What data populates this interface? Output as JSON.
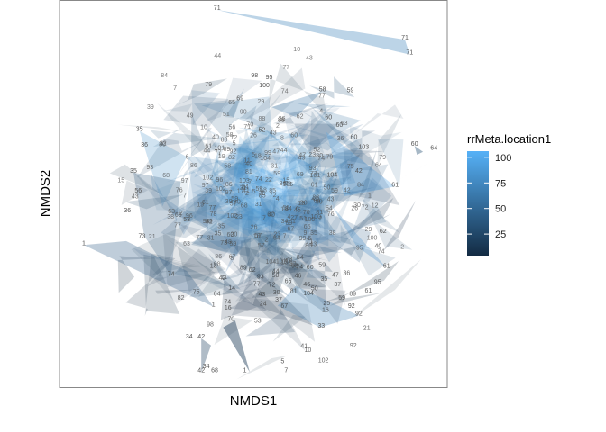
{
  "chart_data": {
    "type": "scatter",
    "subtype": "polygon-overlay",
    "xlabel": "NMDS1",
    "ylabel": "NMDS2",
    "title": "",
    "grid": false,
    "axis_ticks_shown": false,
    "legend": {
      "title": "rrMeta.location1",
      "placement": "right",
      "type": "continuous-colorbar",
      "ticks": [
        100,
        75,
        50,
        25
      ],
      "range": [
        4,
        106
      ],
      "color_low": "#132B43",
      "color_high": "#56B1F7"
    },
    "visible_point_labels": [
      {
        "label": "71",
        "x": 0.55,
        "y": 2.18,
        "value": 71
      },
      {
        "label": "71",
        "x": 2.1,
        "y": 1.88,
        "value": 71
      },
      {
        "label": "71",
        "x": 2.14,
        "y": 1.73,
        "value": 71
      },
      {
        "label": "98",
        "x": 0.86,
        "y": 1.5,
        "value": 98
      },
      {
        "label": "95",
        "x": 0.98,
        "y": 1.48,
        "value": 95
      },
      {
        "label": "100",
        "x": 0.94,
        "y": 1.4,
        "value": 100
      },
      {
        "label": "58",
        "x": 1.42,
        "y": 1.36,
        "value": 58
      },
      {
        "label": "59",
        "x": 1.65,
        "y": 1.35,
        "value": 59
      },
      {
        "label": "69",
        "x": 0.74,
        "y": 1.27,
        "value": 69
      },
      {
        "label": "60",
        "x": 1.47,
        "y": 1.08,
        "value": 60
      },
      {
        "label": "60",
        "x": 1.56,
        "y": 1.0,
        "value": 60
      },
      {
        "label": "60",
        "x": 1.68,
        "y": 0.88,
        "value": 60
      },
      {
        "label": "35",
        "x": -0.09,
        "y": 0.96,
        "value": 35
      },
      {
        "label": "36",
        "x": -0.05,
        "y": 0.8,
        "value": 36
      },
      {
        "label": "103",
        "x": 1.76,
        "y": 0.78,
        "value": 103
      },
      {
        "label": "60",
        "x": 2.18,
        "y": 0.81,
        "value": 60
      },
      {
        "label": "64",
        "x": 2.34,
        "y": 0.77,
        "value": 64
      },
      {
        "label": "35",
        "x": -0.14,
        "y": 0.54,
        "value": 35
      },
      {
        "label": "56",
        "x": -0.1,
        "y": 0.34,
        "value": 56
      },
      {
        "label": "36",
        "x": -0.19,
        "y": 0.14,
        "value": 36
      },
      {
        "label": "42",
        "x": 1.72,
        "y": 0.54,
        "value": 42
      },
      {
        "label": "61",
        "x": 2.02,
        "y": 0.4,
        "value": 61
      },
      {
        "label": "62",
        "x": 1.92,
        "y": -0.07,
        "value": 62
      },
      {
        "label": "40",
        "x": 1.88,
        "y": -0.22,
        "value": 40
      },
      {
        "label": "61",
        "x": 1.95,
        "y": -0.42,
        "value": 61
      },
      {
        "label": "73",
        "x": -0.07,
        "y": -0.12,
        "value": 73
      },
      {
        "label": "74",
        "x": 0.17,
        "y": -0.5,
        "value": 74
      },
      {
        "label": "1",
        "x": -0.55,
        "y": -0.19,
        "value": 1
      },
      {
        "label": "1",
        "x": 0.52,
        "y": -0.81,
        "value": 1
      },
      {
        "label": "59",
        "x": 1.58,
        "y": -0.74,
        "value": 59
      },
      {
        "label": "92",
        "x": 1.66,
        "y": -0.82,
        "value": 92
      },
      {
        "label": "92",
        "x": 1.72,
        "y": -0.9,
        "value": 92
      },
      {
        "label": "34",
        "x": 0.32,
        "y": -1.13,
        "value": 34
      },
      {
        "label": "42",
        "x": 0.42,
        "y": -1.13,
        "value": 42
      },
      {
        "label": "42",
        "x": 0.42,
        "y": -1.47,
        "value": 42
      },
      {
        "label": "34",
        "x": 0.46,
        "y": -1.43,
        "value": 34
      },
      {
        "label": "68",
        "x": 0.53,
        "y": -1.47,
        "value": 68
      },
      {
        "label": "1",
        "x": 0.78,
        "y": -1.47,
        "value": 1
      },
      {
        "label": "5",
        "x": 1.09,
        "y": -1.38,
        "value": 5
      },
      {
        "label": "7",
        "x": 1.12,
        "y": -1.47,
        "value": 7
      },
      {
        "label": "33",
        "x": 1.41,
        "y": -1.02,
        "value": 33
      },
      {
        "label": "88",
        "x": 1.08,
        "y": 1.05,
        "value": 88
      },
      {
        "label": "52",
        "x": 0.92,
        "y": 0.95,
        "value": 52
      },
      {
        "label": "104",
        "x": 1.5,
        "y": 0.5,
        "value": 104
      },
      {
        "label": "53",
        "x": 0.3,
        "y": 0.05,
        "value": 53
      },
      {
        "label": "24",
        "x": 0.93,
        "y": -0.8,
        "value": 24
      }
    ]
  }
}
